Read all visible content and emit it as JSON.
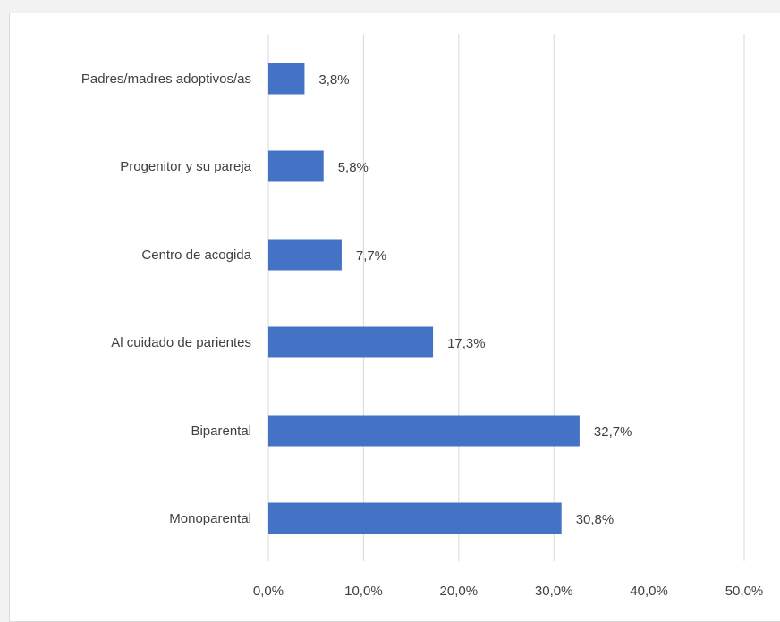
{
  "chart_data": {
    "type": "bar",
    "orientation": "horizontal",
    "categories": [
      "Padres/madres adoptivos/as",
      "Progenitor y su pareja",
      "Centro de acogida",
      "Al cuidado de parientes",
      "Biparental",
      "Monoparental"
    ],
    "values": [
      3.8,
      5.8,
      7.7,
      17.3,
      32.7,
      30.8
    ],
    "data_labels": [
      "3,8%",
      "5,8%",
      "7,7%",
      "17,3%",
      "32,7%",
      "30,8%"
    ],
    "x_ticks": [
      "0,0%",
      "10,0%",
      "20,0%",
      "30,0%",
      "40,0%",
      "50,0%"
    ],
    "xlim": [
      0,
      50
    ],
    "grid": "vertical",
    "title": "",
    "xlabel": "",
    "ylabel": "",
    "bar_color": "#4472c4",
    "grid_color": "#d9d9d9",
    "text_color": "#404040"
  }
}
